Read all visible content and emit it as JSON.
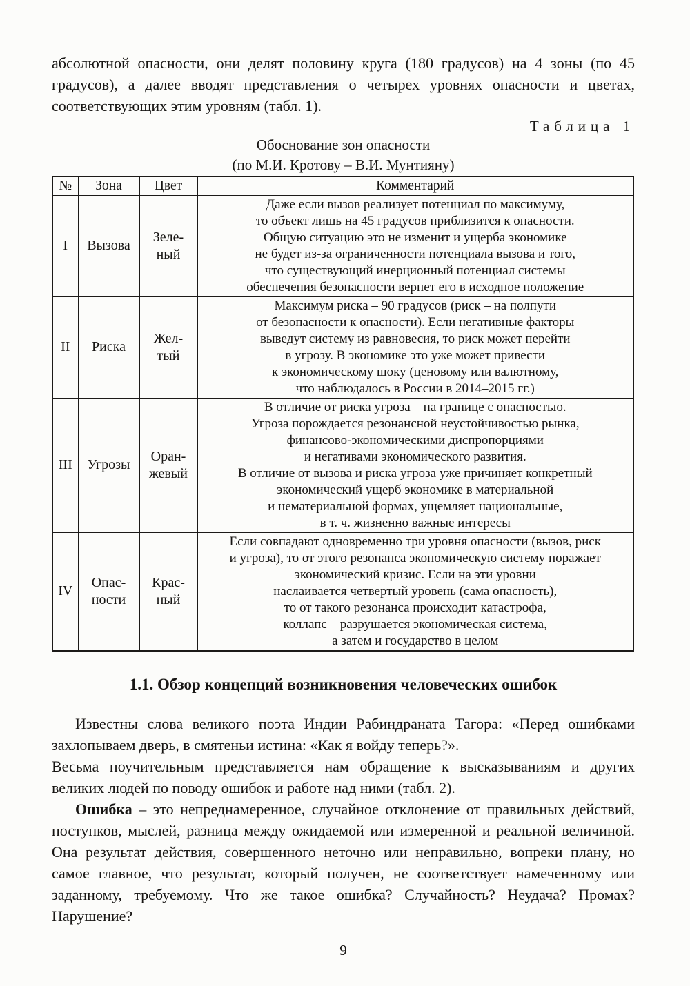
{
  "intro_paragraph": "абсолютной опасности, они делят половину круга (180 градусов) на 4 зоны (по 45 градусов), а далее вводят представления о четырех уровнях опасности и цветах, соответствующих этим уровням (табл. 1).",
  "table": {
    "label": "Таблица 1",
    "caption_line1": "Обоснование зон опасности",
    "caption_line2": "(по М.И. Кротову – В.И. Мунтияну)",
    "headers": [
      "№",
      "Зона",
      "Цвет",
      "Комментарий"
    ],
    "rows": [
      {
        "num": "I",
        "zone": "Вызова",
        "color": [
          "Зеле-",
          "ный"
        ],
        "comment": [
          "Даже если вызов реализует потенциал по максимуму,",
          "то объект лишь на 45 градусов приблизится к опасности.",
          "Общую ситуацию это не изменит и ущерба экономике",
          "не будет из-за ограниченности потенциала вызова и того,",
          "что существующий инерционный потенциал системы",
          "обеспечения безопасности вернет его в исходное положение"
        ]
      },
      {
        "num": "II",
        "zone": "Риска",
        "color": [
          "Жел-",
          "тый"
        ],
        "comment": [
          "Максимум риска – 90 градусов (риск – на полпути",
          "от безопасности к опасности). Если негативные факторы",
          "выведут систему из равновесия, то риск может перейти",
          "в угрозу. В экономике это уже может привести",
          "к экономическому шоку (ценовому или валютному,",
          "что наблюдалось в России в 2014–2015 гг.)"
        ]
      },
      {
        "num": "III",
        "zone": "Угрозы",
        "color": [
          "Оран-",
          "жевый"
        ],
        "comment": [
          "В отличие от риска угроза – на границе с опасностью.",
          "Угроза порождается резонансной неустойчивостью рынка,",
          "финансово-экономическими диспропорциями",
          "и негативами экономического развития.",
          "В отличие от вызова и риска угроза уже причиняет конкретный",
          "экономический ущерб экономике в материальной",
          "и нематериальной формах, ущемляет национальные,",
          "в т. ч. жизненно важные интересы"
        ]
      },
      {
        "num": "IV",
        "zone": [
          "Опас-",
          "ности"
        ],
        "color": [
          "Крас-",
          "ный"
        ],
        "comment": [
          "Если совпадают одновременно три уровня опасности (вызов, риск",
          "и угроза), то от этого резонанса экономическую систему поражает",
          "экономический кризис. Если на эти уровни",
          "наслаивается четвертый уровень (сама опасность),",
          "то от такого резонанса происходит катастрофа,",
          "коллапс – разрушается экономическая система,",
          "а затем и государство в целом"
        ]
      }
    ]
  },
  "section": {
    "heading": "1.1. Обзор концепций возникновения человеческих ошибок",
    "paragraphs": [
      "Известны слова великого поэта Индии Рабиндраната Тагора: «Перед ошибками захлопываем дверь, в смятеньи истина: «Как я войду теперь?».",
      "Весьма поучительным представляется нам обращение к высказываниям и других великих людей по поводу ошибок и работе над ними (табл. 2)."
    ],
    "error_paragraph": {
      "lead": "Ошибка",
      "text": " – это непреднамеренное, случайное отклонение от правильных действий, поступков, мыслей, разница между ожидаемой или измеренной и реальной величиной. Она результат действия, совершенного неточно или неправильно, вопреки плану, но самое главное, что результат, который получен, не соответствует намеченному или заданному, требуемому. Что же такое ошибка? Случайность? Неудача? Промах? Нарушение?"
    }
  },
  "page_number": "9"
}
